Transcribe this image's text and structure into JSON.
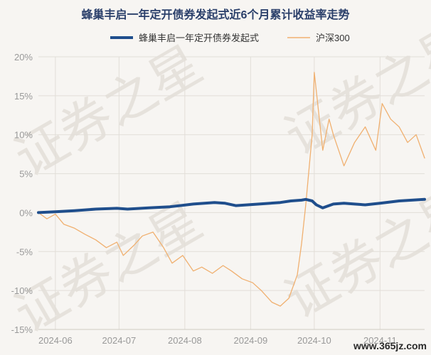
{
  "watermark": "证券之星",
  "site_mark": "www.365jz.com",
  "chart_data": {
    "type": "line",
    "title": "蜂巢丰启一年定开债券发起式近6个月累计收益率走势",
    "xlabel": "",
    "ylabel": "",
    "ylim": [
      -15,
      20
    ],
    "yticks": [
      -15,
      -10,
      -5,
      0,
      5,
      10,
      15,
      20
    ],
    "ytick_labels": [
      "-15%",
      "-10%",
      "-5%",
      "0%",
      "5%",
      "10%",
      "15%",
      "20%"
    ],
    "xlim": [
      "2024-05-24",
      "2024-11-22"
    ],
    "xticks": [
      "2024-06-01",
      "2024-07-01",
      "2024-08-01",
      "2024-09-01",
      "2024-10-01",
      "2024-11-01"
    ],
    "xtick_labels": [
      "2024-06",
      "2024-07",
      "2024-08",
      "2024-09",
      "2024-10",
      "2024-11"
    ],
    "grid": true,
    "legend_position": "top-center",
    "series": [
      {
        "name": "蜂巢丰启一年定开债券发起式",
        "color": "#1f4e8c",
        "x": [
          "2024-05-24",
          "2024-06-01",
          "2024-06-10",
          "2024-06-20",
          "2024-06-30",
          "2024-07-05",
          "2024-07-15",
          "2024-07-25",
          "2024-08-05",
          "2024-08-15",
          "2024-08-20",
          "2024-08-25",
          "2024-09-05",
          "2024-09-15",
          "2024-09-20",
          "2024-09-25",
          "2024-09-27",
          "2024-09-30",
          "2024-10-02",
          "2024-10-05",
          "2024-10-10",
          "2024-10-15",
          "2024-10-20",
          "2024-10-25",
          "2024-11-01",
          "2024-11-10",
          "2024-11-22"
        ],
        "y": [
          0.0,
          0.1,
          0.25,
          0.45,
          0.55,
          0.45,
          0.6,
          0.75,
          1.1,
          1.3,
          1.2,
          0.9,
          1.1,
          1.3,
          1.5,
          1.6,
          1.7,
          1.5,
          1.0,
          0.6,
          1.1,
          1.2,
          1.1,
          1.0,
          1.2,
          1.5,
          1.7
        ]
      },
      {
        "name": "沪深300",
        "color": "#f0b070",
        "x": [
          "2024-05-24",
          "2024-05-28",
          "2024-06-01",
          "2024-06-05",
          "2024-06-10",
          "2024-06-15",
          "2024-06-20",
          "2024-06-25",
          "2024-06-30",
          "2024-07-03",
          "2024-07-08",
          "2024-07-12",
          "2024-07-17",
          "2024-07-22",
          "2024-07-26",
          "2024-07-31",
          "2024-08-05",
          "2024-08-09",
          "2024-08-14",
          "2024-08-19",
          "2024-08-23",
          "2024-08-28",
          "2024-09-02",
          "2024-09-06",
          "2024-09-11",
          "2024-09-15",
          "2024-09-19",
          "2024-09-23",
          "2024-09-25",
          "2024-09-27",
          "2024-09-30",
          "2024-10-01",
          "2024-10-05",
          "2024-10-08",
          "2024-10-10",
          "2024-10-15",
          "2024-10-20",
          "2024-10-25",
          "2024-10-30",
          "2024-11-02",
          "2024-11-06",
          "2024-11-10",
          "2024-11-14",
          "2024-11-18",
          "2024-11-22"
        ],
        "y": [
          0.0,
          -0.8,
          -0.2,
          -1.5,
          -2.0,
          -2.8,
          -3.5,
          -4.5,
          -3.8,
          -5.5,
          -4.2,
          -3.0,
          -2.5,
          -4.5,
          -6.5,
          -5.5,
          -7.5,
          -7.0,
          -7.8,
          -6.8,
          -7.5,
          -8.5,
          -9.0,
          -10.0,
          -11.5,
          -12.0,
          -11.0,
          -8.0,
          -4.0,
          1.0,
          10.0,
          18.0,
          8.0,
          12.0,
          10.0,
          6.0,
          9.0,
          11.0,
          8.0,
          14.0,
          12.0,
          11.0,
          9.0,
          10.0,
          7.0
        ]
      }
    ]
  }
}
